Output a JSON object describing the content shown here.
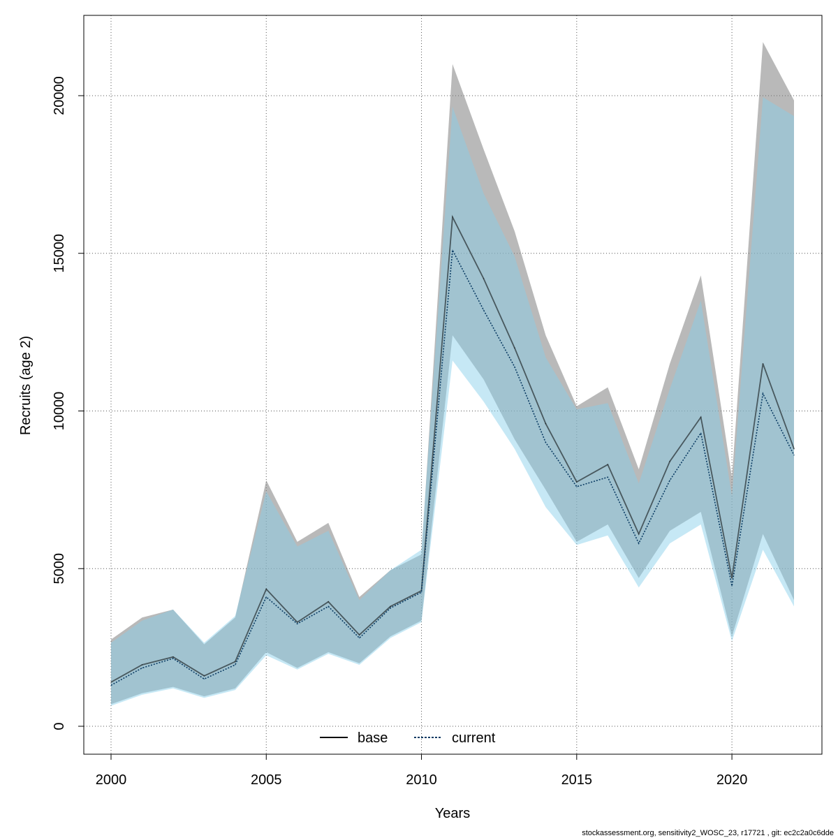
{
  "chart_data": {
    "type": "line",
    "xlabel": "Years",
    "ylabel": "Recruits (age 2)",
    "xlim": [
      2000,
      2022
    ],
    "ylim": [
      0,
      22000
    ],
    "x_ticks": [
      "2000",
      "2005",
      "2010",
      "2015",
      "2020"
    ],
    "y_ticks": [
      "0",
      "5000",
      "10000",
      "15000",
      "20000"
    ],
    "grid": true,
    "legend_position": "bottom-center",
    "x": [
      2000,
      2001,
      2002,
      2003,
      2004,
      2005,
      2006,
      2007,
      2008,
      2009,
      2010,
      2011,
      2012,
      2013,
      2014,
      2015,
      2016,
      2017,
      2018,
      2019,
      2020,
      2021,
      2022
    ],
    "series": [
      {
        "name": "base",
        "line_style": "solid",
        "line_color": "#000000",
        "band_color": "#808080",
        "values": [
          1400,
          1950,
          2200,
          1600,
          2050,
          4350,
          3300,
          3950,
          2900,
          3800,
          4300,
          16150,
          14200,
          12000,
          9600,
          7750,
          8300,
          6100,
          8400,
          9800,
          4700,
          11500,
          8800
        ],
        "upper": [
          2750,
          3450,
          3700,
          2600,
          3450,
          7800,
          5850,
          6450,
          4100,
          4950,
          5450,
          21000,
          18300,
          15700,
          12400,
          10150,
          10750,
          8150,
          11500,
          14300,
          7900,
          21700,
          19850
        ],
        "lower": [
          700,
          1050,
          1250,
          950,
          1200,
          2350,
          1850,
          2350,
          2000,
          2850,
          3350,
          12400,
          11000,
          9100,
          7500,
          5850,
          6400,
          4700,
          6200,
          6800,
          2850,
          6100,
          4000
        ]
      },
      {
        "name": "current",
        "line_style": "dotted",
        "line_color": "#0a3b63",
        "band_color": "#87ceeb",
        "values": [
          1300,
          1850,
          2150,
          1500,
          1950,
          4100,
          3250,
          3800,
          2800,
          3750,
          4250,
          15100,
          13200,
          11400,
          9000,
          7600,
          7900,
          5800,
          7800,
          9300,
          4450,
          10550,
          8600
        ],
        "upper": [
          2650,
          3350,
          3700,
          2650,
          3500,
          7450,
          5700,
          6200,
          4000,
          4950,
          5600,
          19650,
          16900,
          14900,
          11700,
          10050,
          10250,
          7700,
          10700,
          13500,
          7300,
          19950,
          19350
        ],
        "lower": [
          650,
          1000,
          1200,
          900,
          1150,
          2250,
          1800,
          2300,
          1950,
          2800,
          3300,
          11600,
          10300,
          8800,
          6950,
          5750,
          6050,
          4400,
          5800,
          6400,
          2700,
          5600,
          3800
        ]
      }
    ]
  },
  "footer": "stockassessment.org, sensitivity2_WOSC_23, r17721 , git: ec2c2a0c6dde"
}
